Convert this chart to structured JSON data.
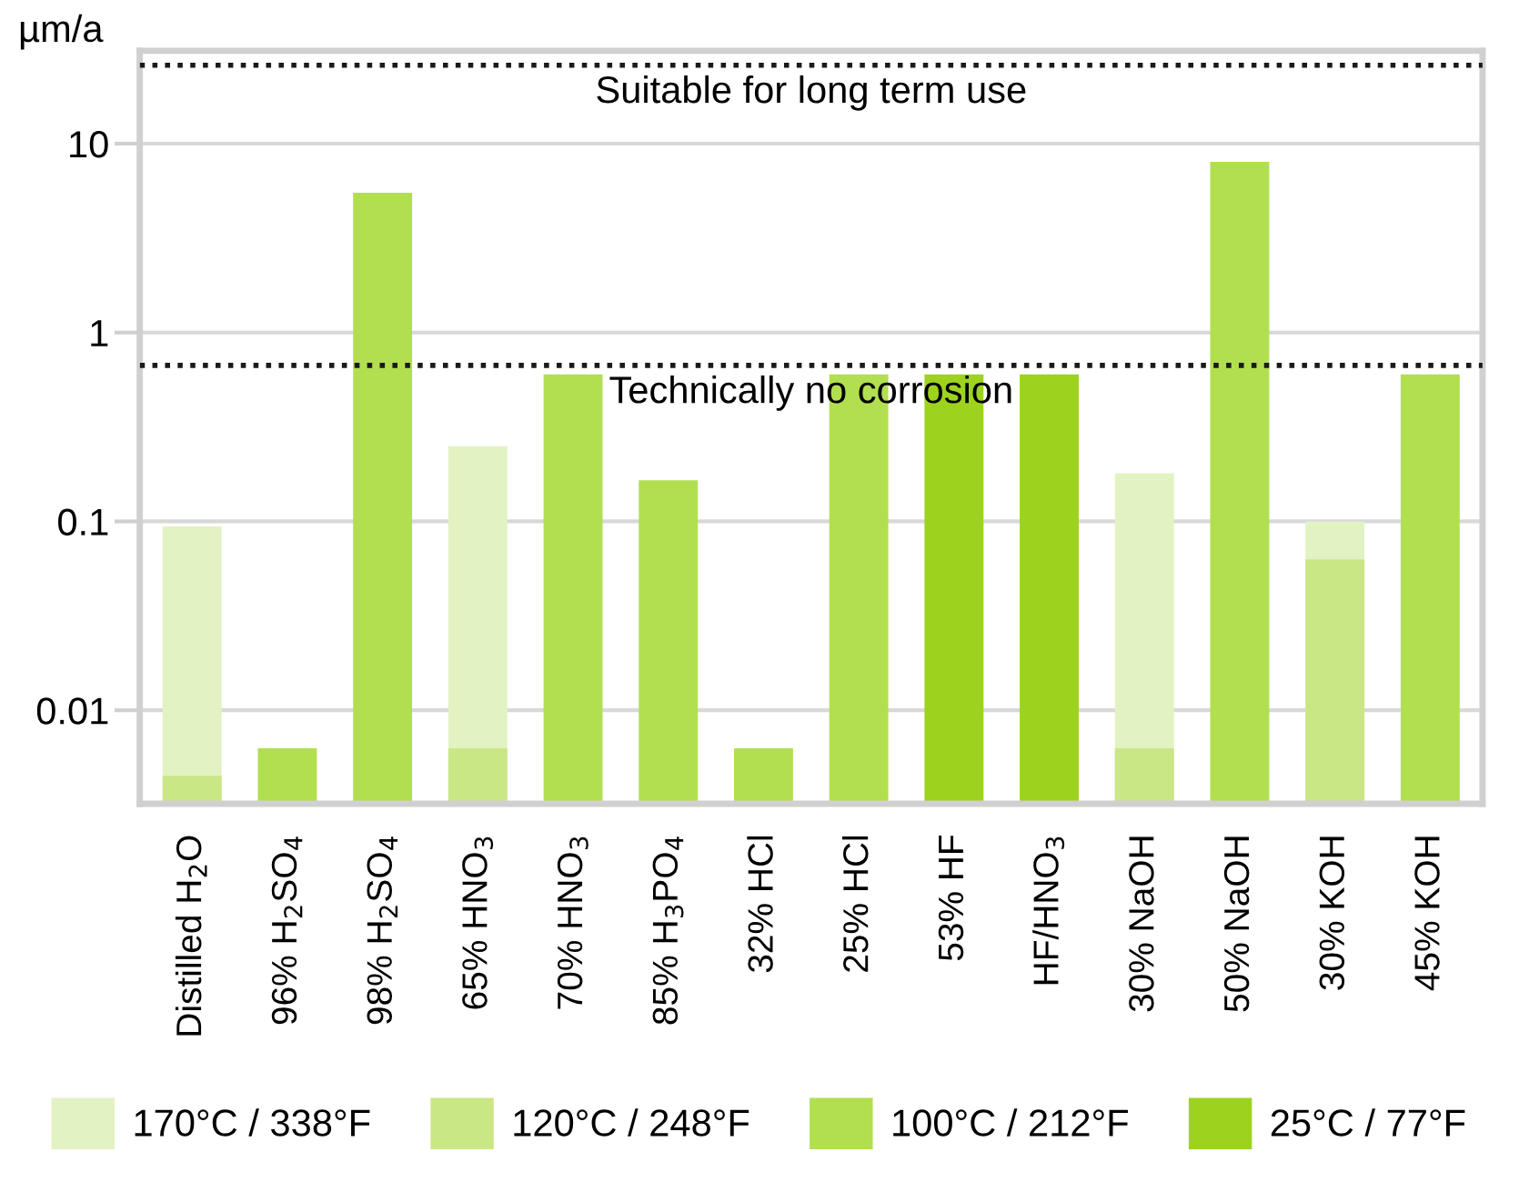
{
  "chart_data": {
    "type": "bar",
    "ylabel": "µm/a",
    "categories": [
      "Distilled H$_{2}$O",
      "96% H$_{2}$SO$_{4}$",
      "98% H$_{2}$SO$_{4}$",
      "65% HNO$_{3}$",
      "70% HNO$_{3}$",
      "85% H$_{3}$PO$_{4}$",
      "32% HCl",
      "25% HCl",
      "53% HF",
      "HF/HNO$_{3}$",
      "30% NaOH",
      "50% NaOH",
      "30% KOH",
      "45% KOH"
    ],
    "series": [
      {
        "name": "170°C / 338°F",
        "color": "#e2f2c3",
        "values": [
          0.094,
          null,
          null,
          0.25,
          null,
          null,
          null,
          null,
          null,
          null,
          0.18,
          null,
          0.1,
          null
        ]
      },
      {
        "name": "120°C / 248°F",
        "color": "#cae785",
        "values": [
          0.0045,
          null,
          null,
          0.0063,
          null,
          null,
          null,
          null,
          null,
          null,
          0.0063,
          null,
          0.063,
          null
        ]
      },
      {
        "name": "100°C / 212°F",
        "color": "#b2df50",
        "values": [
          null,
          0.0063,
          5.5,
          null,
          0.6,
          0.165,
          0.0063,
          0.6,
          null,
          null,
          null,
          8,
          null,
          0.6
        ]
      },
      {
        "name": "25°C / 77°F",
        "color": "#9dd31f",
        "values": [
          null,
          null,
          null,
          null,
          null,
          null,
          null,
          null,
          0.6,
          0.6,
          null,
          null,
          null,
          null
        ]
      }
    ],
    "log": "y",
    "ylim": [
      0.0032,
      31
    ],
    "yticks": [
      0.01,
      0.1,
      1,
      10
    ],
    "grid": "y",
    "legend": "bottom",
    "ref_lines": [
      {
        "axis": "y",
        "value": 26,
        "label": "Suitable for long term use",
        "color": "#1a1a1a",
        "line_style": "dotted"
      },
      {
        "axis": "y",
        "value": 0.67,
        "label": "Technically no corrosion",
        "color": "#1a1a1a",
        "line_style": "dotted"
      }
    ]
  }
}
